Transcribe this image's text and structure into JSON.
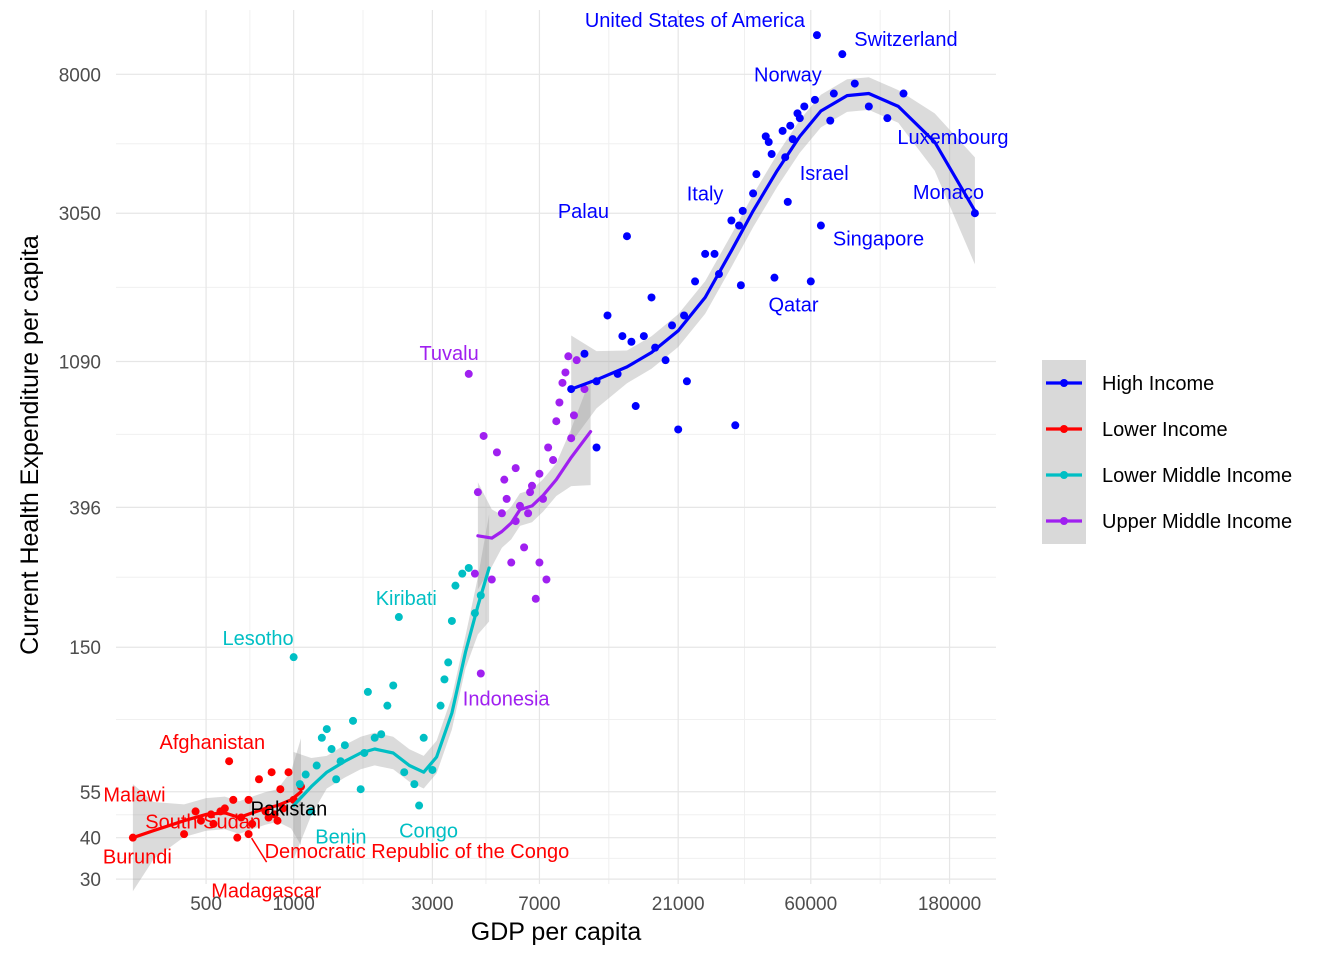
{
  "chart_data": {
    "type": "scatter",
    "xlabel": "GDP per capita",
    "ylabel": "Current Health Expenditure per capita",
    "x_scale": "log",
    "y_scale": "log",
    "x_ticks": [
      500,
      1000,
      3000,
      7000,
      21000,
      60000,
      180000
    ],
    "y_ticks": [
      30,
      40,
      55,
      150,
      396,
      1090,
      3050,
      8000
    ],
    "xlim": [
      245,
      260000
    ],
    "ylim": [
      29,
      12500
    ],
    "grid": true,
    "legend_position": "right",
    "series": [
      {
        "name": "High Income",
        "color": "#0000ff",
        "points": [
          [
            9000,
            900
          ],
          [
            10000,
            1150
          ],
          [
            11000,
            950
          ],
          [
            11000,
            600
          ],
          [
            12000,
            1500
          ],
          [
            13000,
            1000
          ],
          [
            13500,
            1300
          ],
          [
            14000,
            2600
          ],
          [
            14500,
            1250
          ],
          [
            15000,
            800
          ],
          [
            16000,
            1300
          ],
          [
            17000,
            1700
          ],
          [
            17500,
            1200
          ],
          [
            19000,
            1100
          ],
          [
            20000,
            1400
          ],
          [
            21000,
            680
          ],
          [
            22000,
            1500
          ],
          [
            22500,
            950
          ],
          [
            24000,
            1900
          ],
          [
            26000,
            2300
          ],
          [
            28000,
            2300
          ],
          [
            29000,
            2000
          ],
          [
            32000,
            2900
          ],
          [
            33000,
            700
          ],
          [
            34000,
            2800
          ],
          [
            34500,
            1850
          ],
          [
            35000,
            3100
          ],
          [
            38000,
            3500
          ],
          [
            39000,
            4000
          ],
          [
            42000,
            5200
          ],
          [
            43000,
            5000
          ],
          [
            44000,
            4600
          ],
          [
            45000,
            1950
          ],
          [
            48000,
            5400
          ],
          [
            49000,
            4500
          ],
          [
            50000,
            3300
          ],
          [
            51000,
            5600
          ],
          [
            52000,
            5100
          ],
          [
            54000,
            6100
          ],
          [
            55000,
            5900
          ],
          [
            57000,
            6400
          ],
          [
            60000,
            1900
          ],
          [
            62000,
            6700
          ],
          [
            63000,
            10500
          ],
          [
            65000,
            2800
          ],
          [
            70000,
            5800
          ],
          [
            72000,
            7000
          ],
          [
            77000,
            9200
          ],
          [
            85000,
            7500
          ],
          [
            95000,
            6400
          ],
          [
            110000,
            5900
          ],
          [
            125000,
            7000
          ],
          [
            220000,
            3050
          ]
        ],
        "trend": [
          [
            9000,
            900
          ],
          [
            11000,
            960
          ],
          [
            14000,
            1050
          ],
          [
            17000,
            1160
          ],
          [
            21000,
            1350
          ],
          [
            26000,
            1700
          ],
          [
            32000,
            2350
          ],
          [
            38000,
            3100
          ],
          [
            46000,
            4100
          ],
          [
            55000,
            5200
          ],
          [
            65000,
            6200
          ],
          [
            80000,
            6900
          ],
          [
            95000,
            7000
          ],
          [
            120000,
            6400
          ],
          [
            160000,
            5000
          ],
          [
            220000,
            3100
          ]
        ]
      },
      {
        "name": "Lower Income",
        "color": "#ff0000",
        "points": [
          [
            280,
            40
          ],
          [
            420,
            41
          ],
          [
            460,
            48
          ],
          [
            480,
            45
          ],
          [
            520,
            47
          ],
          [
            530,
            44
          ],
          [
            560,
            48
          ],
          [
            580,
            49
          ],
          [
            600,
            68
          ],
          [
            620,
            52
          ],
          [
            640,
            40
          ],
          [
            660,
            46
          ],
          [
            700,
            41
          ],
          [
            700,
            52
          ],
          [
            720,
            44
          ],
          [
            760,
            60
          ],
          [
            800,
            48
          ],
          [
            820,
            46
          ],
          [
            840,
            63
          ],
          [
            860,
            47
          ],
          [
            880,
            45
          ],
          [
            900,
            56
          ],
          [
            920,
            49
          ],
          [
            960,
            63
          ],
          [
            1000,
            52
          ],
          [
            1060,
            57
          ]
        ],
        "trend": [
          [
            280,
            40
          ],
          [
            330,
            42
          ],
          [
            420,
            45
          ],
          [
            500,
            47
          ],
          [
            580,
            47.5
          ],
          [
            650,
            46
          ],
          [
            720,
            47.5
          ],
          [
            800,
            49
          ],
          [
            880,
            50
          ],
          [
            980,
            52
          ],
          [
            1060,
            55
          ]
        ]
      },
      {
        "name": "Lower Middle Income",
        "color": "#00bfc4",
        "points": [
          [
            1000,
            140
          ],
          [
            1050,
            58
          ],
          [
            1100,
            62
          ],
          [
            1150,
            48
          ],
          [
            1200,
            66
          ],
          [
            1250,
            80
          ],
          [
            1300,
            85
          ],
          [
            1350,
            74
          ],
          [
            1400,
            60
          ],
          [
            1450,
            68
          ],
          [
            1500,
            76
          ],
          [
            1600,
            90
          ],
          [
            1700,
            56
          ],
          [
            1750,
            72
          ],
          [
            1800,
            110
          ],
          [
            1900,
            80
          ],
          [
            2000,
            82
          ],
          [
            2100,
            100
          ],
          [
            2200,
            115
          ],
          [
            2300,
            185
          ],
          [
            2400,
            63
          ],
          [
            2600,
            58
          ],
          [
            2700,
            50
          ],
          [
            2800,
            80
          ],
          [
            3000,
            64
          ],
          [
            3200,
            100
          ],
          [
            3300,
            120
          ],
          [
            3400,
            135
          ],
          [
            3500,
            180
          ],
          [
            3600,
            230
          ],
          [
            3800,
            250
          ],
          [
            4000,
            260
          ],
          [
            4200,
            190
          ],
          [
            4400,
            215
          ]
        ],
        "trend": [
          [
            1000,
            50
          ],
          [
            1150,
            57
          ],
          [
            1300,
            63
          ],
          [
            1500,
            68
          ],
          [
            1700,
            72
          ],
          [
            1900,
            74
          ],
          [
            2200,
            72
          ],
          [
            2500,
            66
          ],
          [
            2800,
            63
          ],
          [
            3100,
            70
          ],
          [
            3500,
            95
          ],
          [
            3900,
            145
          ],
          [
            4300,
            200
          ],
          [
            4700,
            260
          ]
        ]
      },
      {
        "name": "Upper Middle Income",
        "color": "#a020f0",
        "points": [
          [
            4000,
            1000
          ],
          [
            4200,
            250
          ],
          [
            4300,
            440
          ],
          [
            4500,
            650
          ],
          [
            4800,
            240
          ],
          [
            5000,
            580
          ],
          [
            5200,
            380
          ],
          [
            5400,
            420
          ],
          [
            5600,
            270
          ],
          [
            5800,
            360
          ],
          [
            5800,
            520
          ],
          [
            6000,
            400
          ],
          [
            6200,
            300
          ],
          [
            6400,
            380
          ],
          [
            6600,
            460
          ],
          [
            6800,
            210
          ],
          [
            7000,
            270
          ],
          [
            7200,
            420
          ],
          [
            7500,
            600
          ],
          [
            7800,
            550
          ],
          [
            8000,
            720
          ],
          [
            8200,
            820
          ],
          [
            8400,
            940
          ],
          [
            8600,
            1010
          ],
          [
            8800,
            1130
          ],
          [
            9000,
            640
          ],
          [
            9200,
            750
          ],
          [
            9400,
            1100
          ],
          [
            10000,
            900
          ],
          [
            4400,
            125
          ],
          [
            6500,
            440
          ],
          [
            7000,
            500
          ],
          [
            5300,
            480
          ],
          [
            7400,
            240
          ]
        ],
        "trend": [
          [
            4300,
            325
          ],
          [
            4800,
            320
          ],
          [
            5200,
            335
          ],
          [
            5600,
            355
          ],
          [
            6000,
            390
          ],
          [
            6600,
            400
          ],
          [
            7200,
            430
          ],
          [
            8000,
            480
          ],
          [
            9000,
            560
          ],
          [
            10500,
            670
          ]
        ]
      }
    ],
    "annotations": [
      {
        "text": "United States of America",
        "group": "High Income",
        "point": [
          63000,
          10500
        ],
        "color": "#0000ff"
      },
      {
        "text": "Switzerland",
        "group": "High Income",
        "point": [
          77000,
          9200
        ],
        "color": "#0000ff"
      },
      {
        "text": "Norway",
        "group": "High Income",
        "point": [
          72000,
          7000
        ],
        "color": "#0000ff"
      },
      {
        "text": "Luxembourg",
        "group": "High Income",
        "point": [
          110000,
          5900
        ],
        "color": "#0000ff"
      },
      {
        "text": "Italy",
        "group": "High Income",
        "point": [
          32000,
          2900
        ],
        "color": "#0000ff"
      },
      {
        "text": "Israel",
        "group": "High Income",
        "point": [
          50000,
          3300
        ],
        "color": "#0000ff"
      },
      {
        "text": "Monaco",
        "group": "High Income",
        "point": [
          220000,
          3050
        ],
        "color": "#0000ff"
      },
      {
        "text": "Palau",
        "group": "High Income",
        "point": [
          14000,
          2600
        ],
        "color": "#0000ff"
      },
      {
        "text": "Singapore",
        "group": "High Income",
        "point": [
          65000,
          2800
        ],
        "color": "#0000ff"
      },
      {
        "text": "Qatar",
        "group": "High Income",
        "point": [
          45000,
          1950
        ],
        "color": "#0000ff"
      },
      {
        "text": "Tuvalu",
        "group": "Upper Middle Income",
        "point": [
          4000,
          1000
        ],
        "color": "#a020f0"
      },
      {
        "text": "Indonesia",
        "group": "Upper Middle Income",
        "point": [
          4400,
          125
        ],
        "color": "#a020f0"
      },
      {
        "text": "Kiribati",
        "group": "Lower Middle Income",
        "point": [
          2300,
          185
        ],
        "color": "#00bfc4"
      },
      {
        "text": "Lesotho",
        "group": "Lower Middle Income",
        "point": [
          1000,
          140
        ],
        "color": "#00bfc4"
      },
      {
        "text": "Congo",
        "group": "Lower Middle Income",
        "point": [
          2700,
          50
        ],
        "color": "#00bfc4"
      },
      {
        "text": "Benin",
        "group": "Lower Middle Income",
        "point": [
          1150,
          48
        ],
        "color": "#00bfc4"
      },
      {
        "text": "Afghanistan",
        "group": "Lower Income",
        "point": [
          600,
          68
        ],
        "color": "#ff0000"
      },
      {
        "text": "Malawi",
        "group": "Lower Income",
        "point": [
          460,
          48
        ],
        "color": "#ff0000"
      },
      {
        "text": "South Sudan",
        "group": "Lower Income",
        "point": [
          480,
          45
        ],
        "color": "#ff0000"
      },
      {
        "text": "Burundi",
        "group": "Lower Income",
        "point": [
          280,
          40
        ],
        "color": "#ff0000"
      },
      {
        "text": "Madagascar",
        "group": "Lower Income",
        "point": [
          640,
          40
        ],
        "color": "#ff0000"
      },
      {
        "text": "Democratic Republic of the Congo",
        "group": "Lower Income",
        "point": [
          700,
          41
        ],
        "color": "#ff0000"
      },
      {
        "text": "Pakistan",
        "group": "Lower Income",
        "point": [
          960,
          50
        ],
        "color": "#000000"
      }
    ],
    "legend": [
      {
        "label": "High Income",
        "color": "#0000ff"
      },
      {
        "label": "Lower Income",
        "color": "#ff0000"
      },
      {
        "label": "Lower Middle Income",
        "color": "#00bfc4"
      },
      {
        "label": "Upper Middle Income",
        "color": "#a020f0"
      }
    ]
  }
}
